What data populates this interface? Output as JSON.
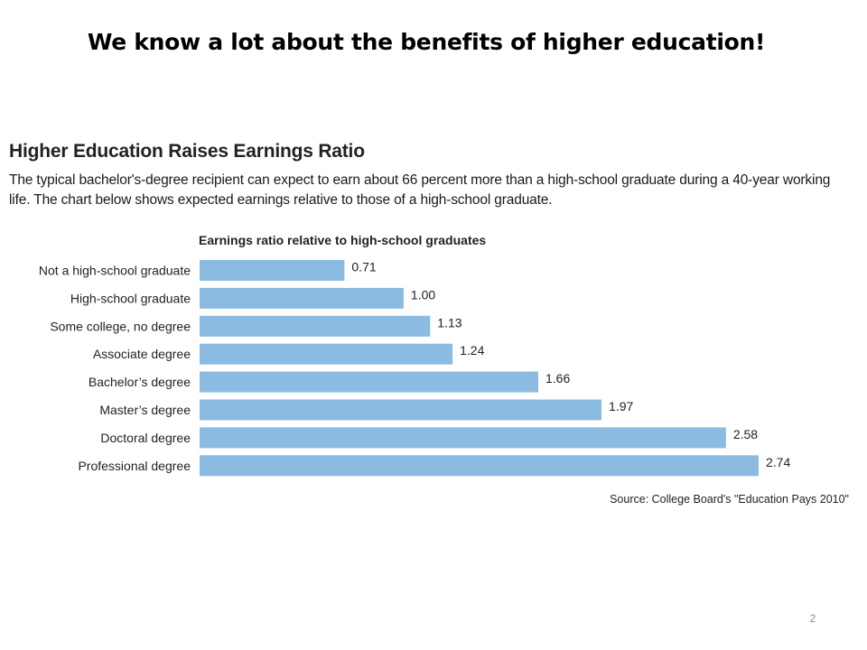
{
  "slide": {
    "title": "We know a lot about the benefits of higher education!",
    "page_number": "2"
  },
  "chart_data": {
    "type": "bar",
    "orientation": "horizontal",
    "title": "Higher Education Raises Earnings Ratio",
    "subtitle": "The typical bachelor's-degree recipient can expect to earn about 66 percent more than a high-school graduate during a 40-year working life. The chart below shows expected earnings relative to those of a high-school graduate.",
    "axis_caption": "Earnings ratio relative to high-school graduates",
    "categories": [
      "Not a high-school graduate",
      "High-school graduate",
      "Some college, no degree",
      "Associate degree",
      "Bachelor’s degree",
      "Master’s degree",
      "Doctoral degree",
      "Professional degree"
    ],
    "values": [
      0.71,
      1.0,
      1.13,
      1.24,
      1.66,
      1.97,
      2.58,
      2.74
    ],
    "value_labels": [
      "0.71",
      "1.00",
      "1.13",
      "1.24",
      "1.66",
      "1.97",
      "2.58",
      "2.74"
    ],
    "xlim": [
      0,
      2.74
    ],
    "grid": false,
    "legend": "none",
    "bar_color": "#8bbbe0",
    "source": "Source: College Board's \"Education Pays 2010\""
  }
}
